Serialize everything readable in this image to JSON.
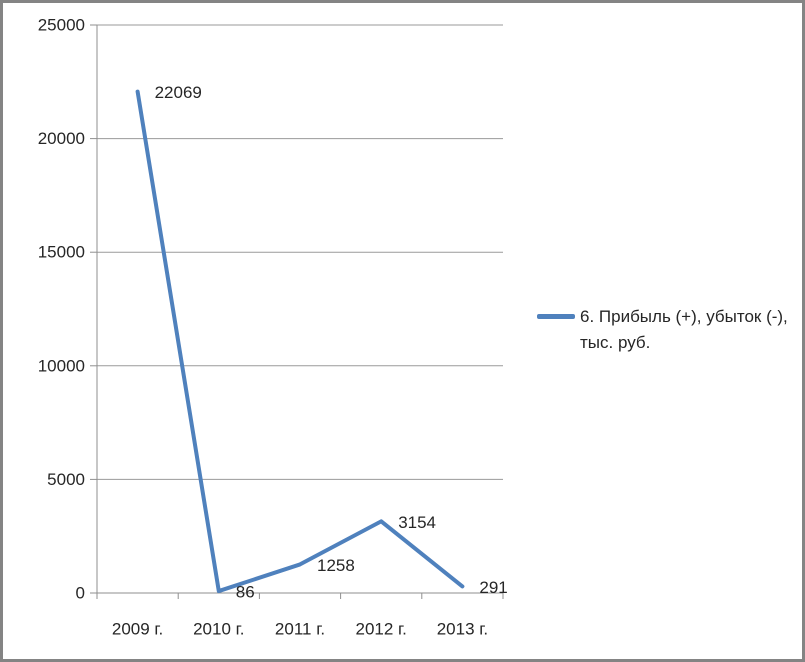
{
  "window": {
    "background": "#ffffff",
    "border_color": "#848484"
  },
  "chart_data": {
    "type": "line",
    "title": "",
    "xlabel": "",
    "ylabel": "",
    "categories": [
      "2009 г.",
      "2010 г.",
      "2011 г.",
      "2012 г.",
      "2013 г."
    ],
    "series": [
      {
        "name": "6. Прибыль (+), убыток (-), тыс. руб.",
        "values": [
          22069,
          86,
          1258,
          3154,
          291
        ],
        "color": "#4F81BD"
      }
    ],
    "data_labels": [
      "22069",
      "86",
      "1258",
      "3154",
      "291"
    ],
    "yticks": [
      0,
      5000,
      10000,
      15000,
      20000,
      25000
    ],
    "ylim": [
      0,
      25000
    ],
    "grid": true,
    "legend_position": "right",
    "colors": {
      "series": "#4F81BD",
      "grid": "#9a9a9a",
      "axis": "#8f8f8f",
      "text": "#262626",
      "border": "#848484"
    }
  }
}
